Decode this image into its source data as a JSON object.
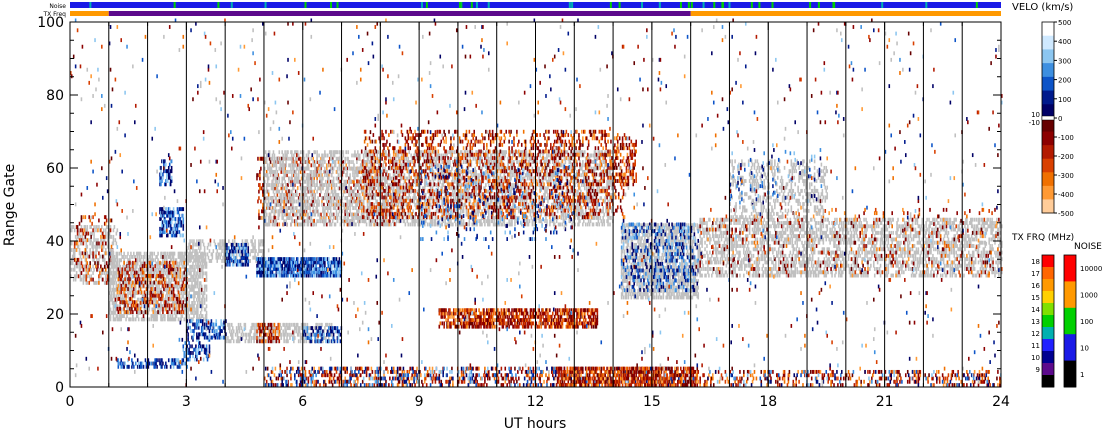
{
  "chart_data": {
    "type": "heatmap",
    "xlabel": "UT hours",
    "ylabel": "Range Gate",
    "xlim": [
      0,
      24
    ],
    "ylim": [
      0,
      100
    ],
    "x_ticks": [
      "0",
      "3",
      "6",
      "9",
      "12",
      "15",
      "18",
      "21",
      "24"
    ],
    "y_ticks": [
      "0",
      "20",
      "40",
      "60",
      "80",
      "100"
    ],
    "grid": "vertical hour lines",
    "top_strips": {
      "noise_label": "Noise",
      "txfreq_label": "TX Freq",
      "noise_color": "#1a1ae6",
      "txfreq_segments": [
        {
          "start": 0,
          "end": 1,
          "color": "#ff9900"
        },
        {
          "start": 1,
          "end": 16,
          "color": "#5c0a8c"
        },
        {
          "start": 16,
          "end": 24,
          "color": "#ff9900"
        }
      ]
    },
    "velocity_scale": {
      "title": "VELO (km/s)",
      "pos_ticks": [
        "500",
        "400",
        "300",
        "200",
        "100",
        "0"
      ],
      "neg_ticks": [
        "-100",
        "-200",
        "-300",
        "-400",
        "-500"
      ],
      "mid_labels": [
        "10",
        "-10"
      ],
      "pos_colors": [
        "#ffffff",
        "#cfe9ff",
        "#8cc6f0",
        "#3d8fe0",
        "#0d54c8",
        "#001a8c",
        "#000066"
      ],
      "neg_colors": [
        "#660000",
        "#8c0000",
        "#b31a00",
        "#d94000",
        "#f07000",
        "#ff9933",
        "#ffcc99"
      ]
    },
    "txfreq_scale": {
      "title": "TX FRQ (MHz)",
      "ticks": [
        "18",
        "17",
        "16",
        "15",
        "14",
        "13",
        "12",
        "11",
        "10",
        "9"
      ],
      "colors": [
        "#ff0000",
        "#ff6600",
        "#ff9900",
        "#ffd000",
        "#80e000",
        "#00d000",
        "#00b0b0",
        "#2020ff",
        "#000090",
        "#5c0a8c",
        "#000000"
      ]
    },
    "noise_scale": {
      "title": "NOISE",
      "ticks": [
        "10000",
        "1000",
        "100",
        "10",
        "1"
      ],
      "colors": [
        "#ff0000",
        "#ff9900",
        "#00d000",
        "#1a1ae6",
        "#000000"
      ]
    },
    "ground_scatter_color": "#c0c0c0",
    "regions": [
      {
        "kind": "ground",
        "t0": 0.0,
        "t1": 1.2,
        "g0": 28,
        "g1": 44,
        "density": 0.35
      },
      {
        "kind": "neg",
        "t0": 0.1,
        "t1": 1.1,
        "g0": 28,
        "g1": 46,
        "density": 0.12
      },
      {
        "kind": "ground",
        "t0": 1.0,
        "t1": 3.5,
        "g0": 18,
        "g1": 36,
        "density": 0.55
      },
      {
        "kind": "neg",
        "t0": 1.2,
        "t1": 3.0,
        "g0": 20,
        "g1": 34,
        "density": 0.25
      },
      {
        "kind": "pos",
        "t0": 2.3,
        "t1": 2.9,
        "g0": 41,
        "g1": 49,
        "density": 0.55
      },
      {
        "kind": "pos",
        "t0": 2.3,
        "t1": 2.6,
        "g0": 55,
        "g1": 62,
        "density": 0.35
      },
      {
        "kind": "ground",
        "t0": 3.0,
        "t1": 5.0,
        "g0": 34,
        "g1": 40,
        "density": 0.35
      },
      {
        "kind": "pos",
        "t0": 4.0,
        "t1": 4.6,
        "g0": 33,
        "g1": 39,
        "density": 0.5
      },
      {
        "kind": "pos",
        "t0": 4.8,
        "t1": 7.0,
        "g0": 30,
        "g1": 35,
        "density": 0.75
      },
      {
        "kind": "neg",
        "t0": 4.8,
        "t1": 8.5,
        "g0": 44,
        "g1": 62,
        "density": 0.18
      },
      {
        "kind": "ground",
        "t0": 5.0,
        "t1": 14.0,
        "g0": 44,
        "g1": 64,
        "density": 0.4
      },
      {
        "kind": "neg",
        "t0": 7.5,
        "t1": 14.3,
        "g0": 46,
        "g1": 70,
        "density": 0.22
      },
      {
        "kind": "pos",
        "t0": 9.0,
        "t1": 13.0,
        "g0": 40,
        "g1": 60,
        "density": 0.05
      },
      {
        "kind": "pos",
        "t0": 1.2,
        "t1": 3.0,
        "g0": 5,
        "g1": 7,
        "density": 0.45
      },
      {
        "kind": "pos",
        "t0": 2.8,
        "t1": 3.6,
        "g0": 7,
        "g1": 13,
        "density": 0.3
      },
      {
        "kind": "pos",
        "t0": 3.0,
        "t1": 4.0,
        "g0": 13,
        "g1": 18,
        "density": 0.45
      },
      {
        "kind": "ground",
        "t0": 4.0,
        "t1": 6.8,
        "g0": 12,
        "g1": 17,
        "density": 0.45
      },
      {
        "kind": "neg",
        "t0": 4.8,
        "t1": 5.4,
        "g0": 12,
        "g1": 17,
        "density": 0.5
      },
      {
        "kind": "pos",
        "t0": 6.0,
        "t1": 7.0,
        "g0": 12,
        "g1": 16,
        "density": 0.35
      },
      {
        "kind": "neg",
        "t0": 9.5,
        "t1": 13.6,
        "g0": 16,
        "g1": 21,
        "density": 0.6
      },
      {
        "kind": "neg",
        "t0": 5.0,
        "t1": 16.0,
        "g0": 0,
        "g1": 5,
        "density": 0.22
      },
      {
        "kind": "pos",
        "t0": 5.0,
        "t1": 16.0,
        "g0": 0,
        "g1": 5,
        "density": 0.12
      },
      {
        "kind": "neg",
        "t0": 12.5,
        "t1": 16.2,
        "g0": 0,
        "g1": 5,
        "density": 0.55
      },
      {
        "kind": "neg",
        "t0": 16.0,
        "t1": 24.0,
        "g0": 0,
        "g1": 4,
        "density": 0.18
      },
      {
        "kind": "pos",
        "t0": 16.0,
        "t1": 24.0,
        "g0": 0,
        "g1": 4,
        "density": 0.06
      },
      {
        "kind": "ground",
        "t0": 14.2,
        "t1": 16.2,
        "g0": 24,
        "g1": 44,
        "density": 0.55
      },
      {
        "kind": "pos",
        "t0": 14.2,
        "t1": 16.2,
        "g0": 26,
        "g1": 44,
        "density": 0.22
      },
      {
        "kind": "ground",
        "t0": 16.2,
        "t1": 24.0,
        "g0": 30,
        "g1": 46,
        "density": 0.4
      },
      {
        "kind": "neg",
        "t0": 16.2,
        "t1": 24.0,
        "g0": 30,
        "g1": 48,
        "density": 0.05
      },
      {
        "kind": "ground",
        "t0": 17.0,
        "t1": 19.5,
        "g0": 46,
        "g1": 62,
        "density": 0.25
      },
      {
        "kind": "pos",
        "t0": 17.0,
        "t1": 19.5,
        "g0": 50,
        "g1": 66,
        "density": 0.04
      },
      {
        "kind": "neg",
        "t0": 14.0,
        "t1": 14.6,
        "g0": 55,
        "g1": 68,
        "density": 0.3
      },
      {
        "kind": "mixed",
        "t0": 0.0,
        "t1": 24.0,
        "g0": 0,
        "g1": 100,
        "density": 0.012
      }
    ]
  }
}
